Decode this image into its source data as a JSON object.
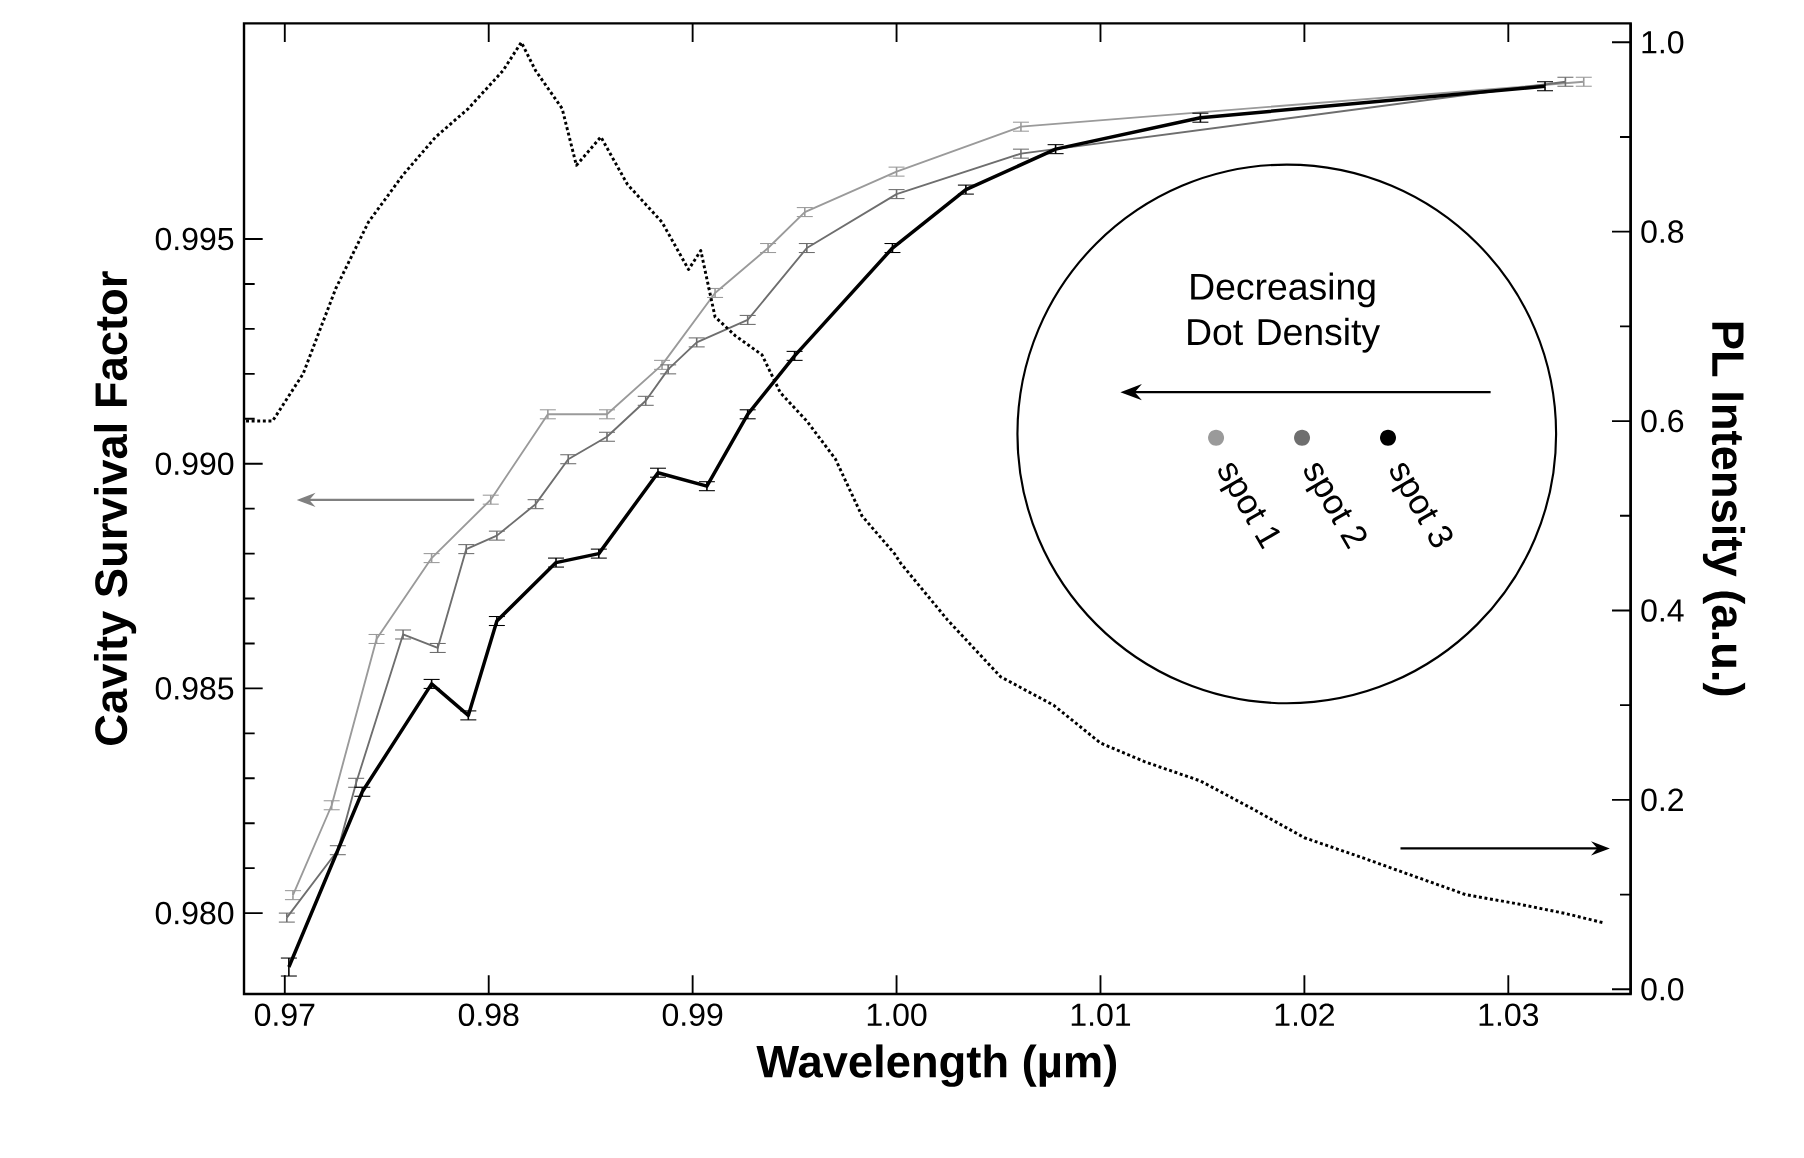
{
  "chart_data": {
    "type": "line",
    "xlabel": "Wavelength (µm)",
    "ylabel": "Cavity Survival Factor",
    "y2label": "PL Intensity (a.u.)",
    "xlim": [
      0.968,
      1.036
    ],
    "ylim": [
      0.9782,
      0.9998
    ],
    "y2lim": [
      -0.005,
      1.02
    ],
    "xticks": [
      0.97,
      0.98,
      0.99,
      {
        "value": 1.0,
        "label": "1.00"
      },
      1.01,
      1.02,
      1.03
    ],
    "yticks": [
      {
        "value": 0.98,
        "label": "0.980"
      },
      {
        "value": 0.985,
        "label": "0.985"
      },
      {
        "value": 0.99,
        "label": "0.990"
      },
      {
        "value": 0.995,
        "label": "0.995"
      }
    ],
    "y2ticks": [
      {
        "value": 0.0,
        "label": "0.0"
      },
      0.2,
      0.4,
      0.6,
      0.8,
      {
        "value": 1.0,
        "label": "1.0"
      }
    ],
    "legend": "right",
    "marker": "none",
    "annotations": [
      "Decreasing Dot Density"
    ],
    "series": [
      {
        "name": "spot 1",
        "color": "#9a9a9a",
        "x": [
          0.9704,
          0.9723,
          0.9745,
          0.9772,
          0.9801,
          0.9829,
          0.9858,
          0.9885,
          0.9911,
          0.9937,
          0.9955,
          1.0,
          1.0061,
          1.0337
        ],
        "values": [
          0.9804,
          0.9824,
          0.9861,
          0.9879,
          0.9892,
          0.9911,
          0.9911,
          0.9922,
          0.9938,
          0.9948,
          0.9956,
          0.9965,
          0.9975,
          0.9985
        ],
        "errors": [
          0.0001,
          0.0001,
          0.0001,
          0.0001,
          0.0001,
          0.0001,
          0.0001,
          0.0001,
          0.0001,
          0.0001,
          0.0001,
          0.0001,
          0.0001,
          0.0001
        ]
      },
      {
        "name": "spot 2",
        "color": "#6e6e6e",
        "x": [
          0.9701,
          0.9726,
          0.9735,
          0.9758,
          0.9775,
          0.9789,
          0.9804,
          0.9823,
          0.9839,
          0.9858,
          0.9877,
          0.9888,
          0.9902,
          0.9927,
          0.9956,
          1.0,
          1.0061,
          1.0328
        ],
        "values": [
          0.9799,
          0.9814,
          0.9829,
          0.9862,
          0.9859,
          0.9881,
          0.9884,
          0.9891,
          0.9901,
          0.9906,
          0.9914,
          0.9921,
          0.9927,
          0.9932,
          0.9948,
          0.996,
          0.9969,
          0.9985
        ],
        "errors": [
          0.0001,
          0.0001,
          0.0001,
          0.0001,
          0.0001,
          0.0001,
          0.0001,
          0.0001,
          0.0001,
          0.0001,
          0.0001,
          0.0001,
          0.0001,
          0.0001,
          0.0001,
          0.0001,
          0.0001,
          0.0001
        ]
      },
      {
        "name": "spot 3",
        "color": "#000000",
        "x": [
          0.9702,
          0.9738,
          0.9772,
          0.979,
          0.9804,
          0.9833,
          0.9854,
          0.9883,
          0.9907,
          0.9927,
          0.995,
          0.9998,
          1.0034,
          1.0078,
          1.0149,
          1.0318
        ],
        "values": [
          0.9788,
          0.9827,
          0.9851,
          0.9844,
          0.9865,
          0.9878,
          0.988,
          0.9898,
          0.9895,
          0.9911,
          0.9924,
          0.9948,
          0.9961,
          0.997,
          0.9977,
          0.9984
        ],
        "errors": [
          0.0002,
          0.0001,
          0.0001,
          0.0001,
          0.0001,
          0.0001,
          0.0001,
          0.0001,
          0.0001,
          0.0001,
          0.0001,
          0.0001,
          0.0001,
          0.0001,
          0.0001,
          0.0001
        ]
      },
      {
        "color": "#000000",
        "axis": "y2",
        "line_style": "dotted",
        "x": [
          0.9681,
          0.9694,
          0.9709,
          0.9725,
          0.9741,
          0.9758,
          0.9774,
          0.979,
          0.9807,
          0.9816,
          0.9823,
          0.9836,
          0.9843,
          0.9855,
          0.9868,
          0.9885,
          0.9898,
          0.9904,
          0.9911,
          0.9921,
          0.9934,
          0.9943,
          0.9956,
          0.997,
          0.9983,
          0.9999,
          1.0002,
          1.0025,
          1.0051,
          1.0077,
          1.01,
          1.0122,
          1.0149,
          1.0175,
          1.02,
          1.0227,
          1.0253,
          1.0279,
          1.0305,
          1.0328,
          1.0347
        ],
        "values": [
          0.6,
          0.6,
          0.65,
          0.74,
          0.81,
          0.86,
          0.9,
          0.93,
          0.97,
          1.0,
          0.97,
          0.93,
          0.87,
          0.9,
          0.85,
          0.81,
          0.76,
          0.78,
          0.71,
          0.69,
          0.67,
          0.63,
          0.6,
          0.56,
          0.5,
          0.46,
          0.45,
          0.39,
          0.33,
          0.3,
          0.26,
          0.24,
          0.22,
          0.19,
          0.16,
          0.14,
          0.12,
          0.1,
          0.09,
          0.08,
          0.07
        ]
      }
    ]
  }
}
